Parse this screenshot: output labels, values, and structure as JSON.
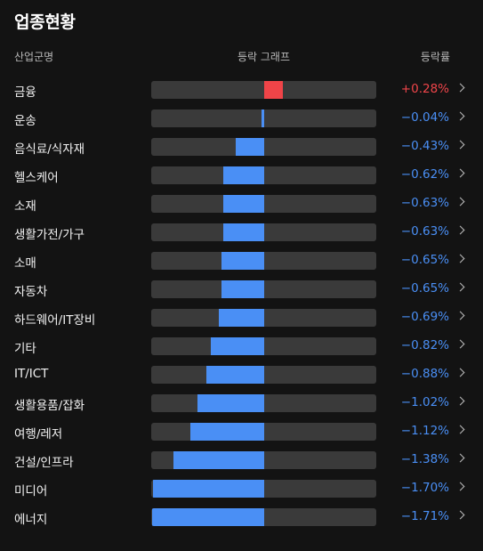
{
  "title": "업종현황",
  "headers": {
    "industry": "산업군명",
    "graph": "등락 그래프",
    "rate": "등락률"
  },
  "colors": {
    "up": "#f04448",
    "down": "#4a8ff5",
    "track": "#3a3a3a",
    "background": "#131313"
  },
  "graph_scale_max_abs_percent": 1.71,
  "rows": [
    {
      "name": "금융",
      "rate_text": "+0.28%",
      "rate": 0.28,
      "icon": "chevron-right-icon"
    },
    {
      "name": "운송",
      "rate_text": "−0.04%",
      "rate": -0.04,
      "icon": "chevron-right-icon"
    },
    {
      "name": "음식료/식자재",
      "rate_text": "−0.43%",
      "rate": -0.43,
      "icon": "chevron-right-icon"
    },
    {
      "name": "헬스케어",
      "rate_text": "−0.62%",
      "rate": -0.62,
      "icon": "chevron-right-icon"
    },
    {
      "name": "소재",
      "rate_text": "−0.63%",
      "rate": -0.63,
      "icon": "chevron-right-icon"
    },
    {
      "name": "생활가전/가구",
      "rate_text": "−0.63%",
      "rate": -0.63,
      "icon": "chevron-right-icon"
    },
    {
      "name": "소매",
      "rate_text": "−0.65%",
      "rate": -0.65,
      "icon": "chevron-right-icon"
    },
    {
      "name": "자동차",
      "rate_text": "−0.65%",
      "rate": -0.65,
      "icon": "chevron-right-icon"
    },
    {
      "name": "하드웨어/IT장비",
      "rate_text": "−0.69%",
      "rate": -0.69,
      "icon": "chevron-right-icon"
    },
    {
      "name": "기타",
      "rate_text": "−0.82%",
      "rate": -0.82,
      "icon": "chevron-right-icon"
    },
    {
      "name": "IT/ICT",
      "rate_text": "−0.88%",
      "rate": -0.88,
      "icon": "chevron-right-icon"
    },
    {
      "name": "생활용품/잡화",
      "rate_text": "−1.02%",
      "rate": -1.02,
      "icon": "chevron-right-icon"
    },
    {
      "name": "여행/레저",
      "rate_text": "−1.12%",
      "rate": -1.12,
      "icon": "chevron-right-icon"
    },
    {
      "name": "건설/인프라",
      "rate_text": "−1.38%",
      "rate": -1.38,
      "icon": "chevron-right-icon"
    },
    {
      "name": "미디어",
      "rate_text": "−1.70%",
      "rate": -1.7,
      "icon": "chevron-right-icon"
    },
    {
      "name": "에너지",
      "rate_text": "−1.71%",
      "rate": -1.71,
      "icon": "chevron-right-icon"
    }
  ]
}
